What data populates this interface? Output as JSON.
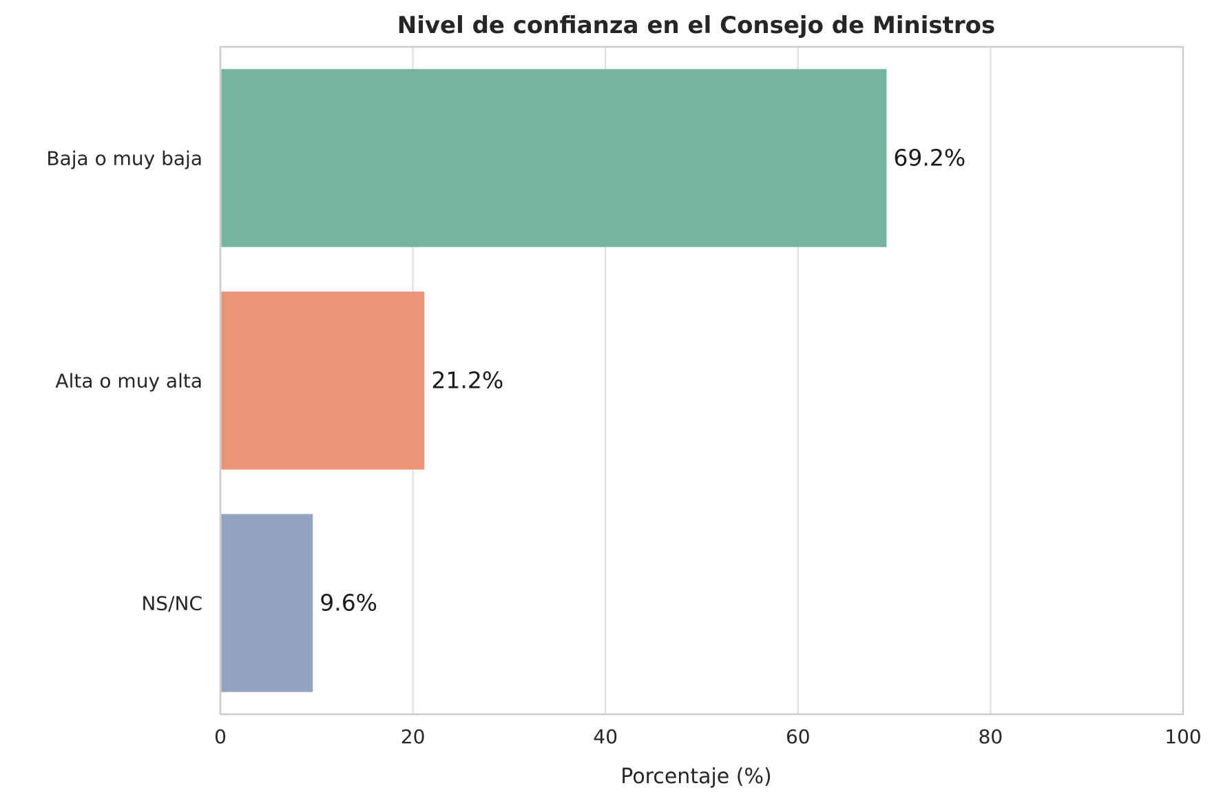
{
  "chart_data": {
    "type": "bar",
    "orientation": "horizontal",
    "title": "Nivel de confianza en el Consejo de Ministros",
    "xlabel": "Porcentaje (%)",
    "ylabel": "",
    "categories": [
      "Baja o muy baja",
      "Alta o muy alta",
      "NS/NC"
    ],
    "values": [
      69.2,
      21.2,
      9.6
    ],
    "value_labels": [
      "69.2%",
      "21.2%",
      "9.6%"
    ],
    "colors": [
      "#75b5a0",
      "#ea9675",
      "#94a3c1"
    ],
    "xlim": [
      0,
      100
    ],
    "xticks": [
      0,
      20,
      40,
      60,
      80,
      100
    ],
    "xtick_labels": [
      "0",
      "20",
      "40",
      "60",
      "80",
      "100"
    ],
    "grid": "vertical",
    "legend": "none"
  }
}
